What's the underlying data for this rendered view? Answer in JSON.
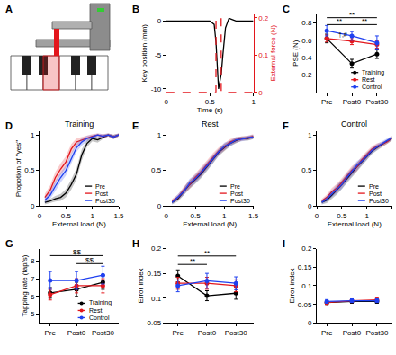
{
  "chart_data": [
    {
      "type": "illustration",
      "title": "A"
    },
    {
      "type": "line",
      "title": "B",
      "x_label": "Time (s)",
      "y_label": "Key position (mm)",
      "y2_label": "External force (N)",
      "x": [
        0,
        0.5,
        0.55,
        0.57,
        0.571,
        0.6,
        0.63,
        0.631,
        0.65,
        0.68,
        0.72,
        0.8,
        1
      ],
      "xlim": [
        0,
        1
      ],
      "xticks": [
        0,
        0.5,
        1
      ],
      "ylim": [
        -10.5,
        1
      ],
      "yticks": [
        -10,
        -5,
        0
      ],
      "y2lim": [
        0,
        0.21
      ],
      "y2ticks": [
        0,
        0.1,
        0.2
      ],
      "series": [
        {
          "color": "#000000",
          "values": [
            0,
            0,
            -0.5,
            -3,
            -3.2,
            -10,
            -8,
            -7.8,
            -5,
            -1,
            0.4,
            0,
            0
          ]
        },
        {
          "color": "#e3161c",
          "line_style": "dash",
          "axis": "y2",
          "values": [
            0,
            0,
            0,
            0,
            0.2,
            0.2,
            0.2,
            0,
            0,
            0,
            0,
            0,
            0
          ]
        }
      ]
    },
    {
      "type": "line",
      "title": "C",
      "y_label": "PSE (N)",
      "categories": [
        "Pre",
        "Post0",
        "Post30"
      ],
      "ylim": [
        0,
        0.9
      ],
      "yticks": [
        0.2,
        0.4,
        0.6,
        0.8
      ],
      "legend": "lower right",
      "marker": "circle",
      "series": [
        {
          "name": "Training",
          "color": "#000000",
          "values": [
            0.62,
            0.33,
            0.44
          ],
          "errors": [
            0.05,
            0.05,
            0.05
          ]
        },
        {
          "name": "Rest",
          "color": "#e3161c",
          "values": [
            0.62,
            0.59,
            0.55
          ],
          "errors": [
            0.04,
            0.04,
            0.04
          ]
        },
        {
          "name": "Control",
          "color": "#1f40f0",
          "values": [
            0.71,
            0.65,
            0.57
          ],
          "errors": [
            0.06,
            0.05,
            0.08
          ]
        }
      ],
      "annotations": [
        {
          "text": "**",
          "from": "Pre",
          "to": "Post30",
          "y": 0.86
        },
        {
          "text": "**",
          "from": "Pre",
          "to": "Post0",
          "y": 0.78
        },
        {
          "text": "**",
          "from": "Post0",
          "to": "Post30",
          "y": 0.78
        },
        {
          "text": "†,#",
          "at": "Post0",
          "y": 0.66
        }
      ]
    },
    {
      "type": "line",
      "title": "D",
      "subtitle": "Training",
      "x_label": "External load (N)",
      "y_label": "Propotion of \"yes\"",
      "x": [
        0.1,
        0.2,
        0.3,
        0.4,
        0.5,
        0.6,
        0.7,
        0.8,
        0.9,
        1,
        1.1,
        1.2,
        1.3,
        1.4,
        1.5
      ],
      "xlim": [
        0,
        1.5
      ],
      "xticks": [
        0,
        0.5,
        1,
        1.5
      ],
      "ylim": [
        0,
        1.05
      ],
      "yticks": [
        0,
        0.5,
        1
      ],
      "legend": "lower right",
      "series": [
        {
          "name": "Pre",
          "color": "#000000",
          "values": [
            0.05,
            0.07,
            0.1,
            0.12,
            0.18,
            0.3,
            0.45,
            0.72,
            0.88,
            0.95,
            0.93,
            0.97,
            1,
            0.97,
            1
          ],
          "errors": [
            0.03,
            0.03,
            0.04,
            0.05,
            0.06,
            0.07,
            0.08,
            0.08,
            0.05,
            0.04,
            0.04,
            0.03,
            0.02,
            0.03,
            0.02
          ]
        },
        {
          "name": "Post",
          "color": "#e3161c",
          "values": [
            0.12,
            0.22,
            0.4,
            0.52,
            0.62,
            0.8,
            0.9,
            0.93,
            0.96,
            0.98,
            1,
            0.98,
            1,
            0.97,
            1
          ],
          "errors": [
            0.05,
            0.07,
            0.08,
            0.08,
            0.08,
            0.07,
            0.05,
            0.04,
            0.03,
            0.03,
            0.02,
            0.03,
            0.02,
            0.03,
            0.02
          ]
        },
        {
          "name": "Post30",
          "color": "#1f40f0",
          "values": [
            0.08,
            0.15,
            0.28,
            0.4,
            0.5,
            0.67,
            0.82,
            0.9,
            0.95,
            0.97,
            1,
            0.98,
            1,
            0.97,
            1
          ],
          "errors": [
            0.04,
            0.05,
            0.07,
            0.07,
            0.07,
            0.07,
            0.06,
            0.05,
            0.04,
            0.03,
            0.02,
            0.03,
            0.02,
            0.03,
            0.02
          ]
        }
      ]
    },
    {
      "type": "line",
      "title": "E",
      "subtitle": "Rest",
      "x_label": "External load (N)",
      "x": [
        0.1,
        0.2,
        0.3,
        0.4,
        0.5,
        0.6,
        0.7,
        0.8,
        0.9,
        1,
        1.1,
        1.2,
        1.3,
        1.4,
        1.5
      ],
      "xlim": [
        0,
        1.5
      ],
      "xticks": [
        0,
        0.5,
        1,
        1.5
      ],
      "ylim": [
        0,
        1.05
      ],
      "yticks": [
        0,
        0.5,
        1
      ],
      "legend": "lower right",
      "series": [
        {
          "name": "Pre",
          "color": "#000000",
          "values": [
            0.05,
            0.1,
            0.2,
            0.3,
            0.37,
            0.45,
            0.55,
            0.65,
            0.75,
            0.82,
            0.88,
            0.92,
            0.95,
            0.95,
            0.97
          ],
          "errors": [
            0.03,
            0.04,
            0.05,
            0.06,
            0.06,
            0.06,
            0.06,
            0.06,
            0.05,
            0.05,
            0.04,
            0.04,
            0.03,
            0.03,
            0.03
          ]
        },
        {
          "name": "Post",
          "color": "#e3161c",
          "values": [
            0.07,
            0.12,
            0.22,
            0.3,
            0.4,
            0.48,
            0.58,
            0.68,
            0.77,
            0.83,
            0.9,
            0.93,
            0.95,
            0.96,
            0.98
          ],
          "errors": [
            0.03,
            0.04,
            0.05,
            0.06,
            0.06,
            0.06,
            0.06,
            0.06,
            0.05,
            0.05,
            0.04,
            0.04,
            0.03,
            0.03,
            0.03
          ]
        },
        {
          "name": "Post30",
          "color": "#1f40f0",
          "values": [
            0.05,
            0.12,
            0.2,
            0.32,
            0.38,
            0.47,
            0.56,
            0.66,
            0.76,
            0.84,
            0.88,
            0.93,
            0.94,
            0.96,
            0.97
          ],
          "errors": [
            0.03,
            0.04,
            0.05,
            0.06,
            0.06,
            0.06,
            0.06,
            0.06,
            0.05,
            0.05,
            0.04,
            0.04,
            0.03,
            0.03,
            0.03
          ]
        }
      ]
    },
    {
      "type": "line",
      "title": "F",
      "subtitle": "Control",
      "x_label": "External load (N)",
      "x": [
        0.1,
        0.2,
        0.3,
        0.4,
        0.5,
        0.6,
        0.7,
        0.8,
        0.9,
        1,
        1.1,
        1.2,
        1.3,
        1.4,
        1.5
      ],
      "xlim": [
        0,
        1.5
      ],
      "xticks": [
        0,
        0.5,
        1,
        1.5
      ],
      "ylim": [
        0,
        1.05
      ],
      "yticks": [
        0,
        0.5,
        1
      ],
      "legend": "lower right",
      "series": [
        {
          "name": "Pre",
          "color": "#000000",
          "values": [
            0.05,
            0.08,
            0.15,
            0.22,
            0.3,
            0.38,
            0.47,
            0.55,
            0.62,
            0.7,
            0.77,
            0.82,
            0.86,
            0.9,
            0.95
          ],
          "errors": [
            0.03,
            0.04,
            0.05,
            0.06,
            0.06,
            0.06,
            0.06,
            0.06,
            0.05,
            0.05,
            0.04,
            0.04,
            0.03,
            0.03,
            0.03
          ]
        },
        {
          "name": "Post",
          "color": "#e3161c",
          "values": [
            0.07,
            0.12,
            0.2,
            0.25,
            0.33,
            0.42,
            0.5,
            0.55,
            0.65,
            0.72,
            0.8,
            0.84,
            0.87,
            0.9,
            0.96
          ],
          "errors": [
            0.03,
            0.04,
            0.05,
            0.06,
            0.06,
            0.06,
            0.06,
            0.06,
            0.05,
            0.05,
            0.04,
            0.04,
            0.03,
            0.03,
            0.03
          ]
        },
        {
          "name": "Post30",
          "color": "#1f40f0",
          "values": [
            0.05,
            0.1,
            0.17,
            0.24,
            0.3,
            0.4,
            0.48,
            0.57,
            0.63,
            0.7,
            0.78,
            0.83,
            0.88,
            0.92,
            0.96
          ],
          "errors": [
            0.03,
            0.04,
            0.05,
            0.06,
            0.06,
            0.06,
            0.06,
            0.06,
            0.05,
            0.05,
            0.04,
            0.04,
            0.03,
            0.03,
            0.03
          ]
        }
      ]
    },
    {
      "type": "line",
      "title": "G",
      "y_label": "Tapping rate (tap/s)",
      "categories": [
        "Pre",
        "Post0",
        "Post30"
      ],
      "ylim": [
        4.5,
        8.7
      ],
      "yticks": [
        5,
        6,
        7,
        8
      ],
      "legend": "lower right",
      "marker": "circle",
      "series": [
        {
          "name": "Training",
          "color": "#000000",
          "values": [
            6.2,
            6.4,
            6.8
          ],
          "errors": [
            0.3,
            0.4,
            0.4
          ]
        },
        {
          "name": "Rest",
          "color": "#e3161c",
          "values": [
            6.1,
            6.6,
            6.6
          ],
          "errors": [
            0.3,
            0.4,
            0.4
          ]
        },
        {
          "name": "Control",
          "color": "#1f40f0",
          "values": [
            6.9,
            6.9,
            7.2
          ],
          "errors": [
            0.5,
            0.5,
            0.5
          ]
        }
      ],
      "annotations": [
        {
          "text": "$$",
          "from": "Pre",
          "to": "Post30",
          "y": 8.3
        },
        {
          "text": "$$",
          "from": "Post0",
          "to": "Post30",
          "y": 7.85
        }
      ]
    },
    {
      "type": "line",
      "title": "H",
      "y_label": "Error index",
      "categories": [
        "Pre",
        "Post0",
        "Post30"
      ],
      "ylim": [
        0.05,
        0.2
      ],
      "yticks": [
        0.05,
        0.1,
        0.15,
        0.2
      ],
      "marker": "circle",
      "series": [
        {
          "name": "Training",
          "color": "#000000",
          "values": [
            0.145,
            0.105,
            0.11
          ],
          "errors": [
            0.012,
            0.01,
            0.012
          ]
        },
        {
          "name": "Rest",
          "color": "#e3161c",
          "values": [
            0.13,
            0.13,
            0.125
          ],
          "errors": [
            0.012,
            0.012,
            0.012
          ]
        },
        {
          "name": "Control",
          "color": "#1f40f0",
          "values": [
            0.125,
            0.135,
            0.13
          ],
          "errors": [
            0.012,
            0.015,
            0.013
          ]
        }
      ],
      "annotations": [
        {
          "text": "**",
          "from": "Pre",
          "to": "Post30",
          "y": 0.185
        },
        {
          "text": "**",
          "from": "Pre",
          "to": "Post0",
          "y": 0.168
        }
      ]
    },
    {
      "type": "line",
      "title": "I",
      "y_label": "Error index",
      "categories": [
        "Pre",
        "Post0",
        "Post30"
      ],
      "ylim": [
        0,
        0.2
      ],
      "yticks": [
        0,
        0.05,
        0.1,
        0.15,
        0.2
      ],
      "marker": "circle",
      "series": [
        {
          "name": "Training",
          "color": "#000000",
          "values": [
            0.055,
            0.058,
            0.058
          ],
          "errors": [
            0.005,
            0.005,
            0.005
          ]
        },
        {
          "name": "Rest",
          "color": "#e3161c",
          "values": [
            0.055,
            0.06,
            0.062
          ],
          "errors": [
            0.005,
            0.005,
            0.005
          ]
        },
        {
          "name": "Control",
          "color": "#1f40f0",
          "values": [
            0.058,
            0.06,
            0.06
          ],
          "errors": [
            0.005,
            0.005,
            0.005
          ]
        }
      ]
    }
  ]
}
